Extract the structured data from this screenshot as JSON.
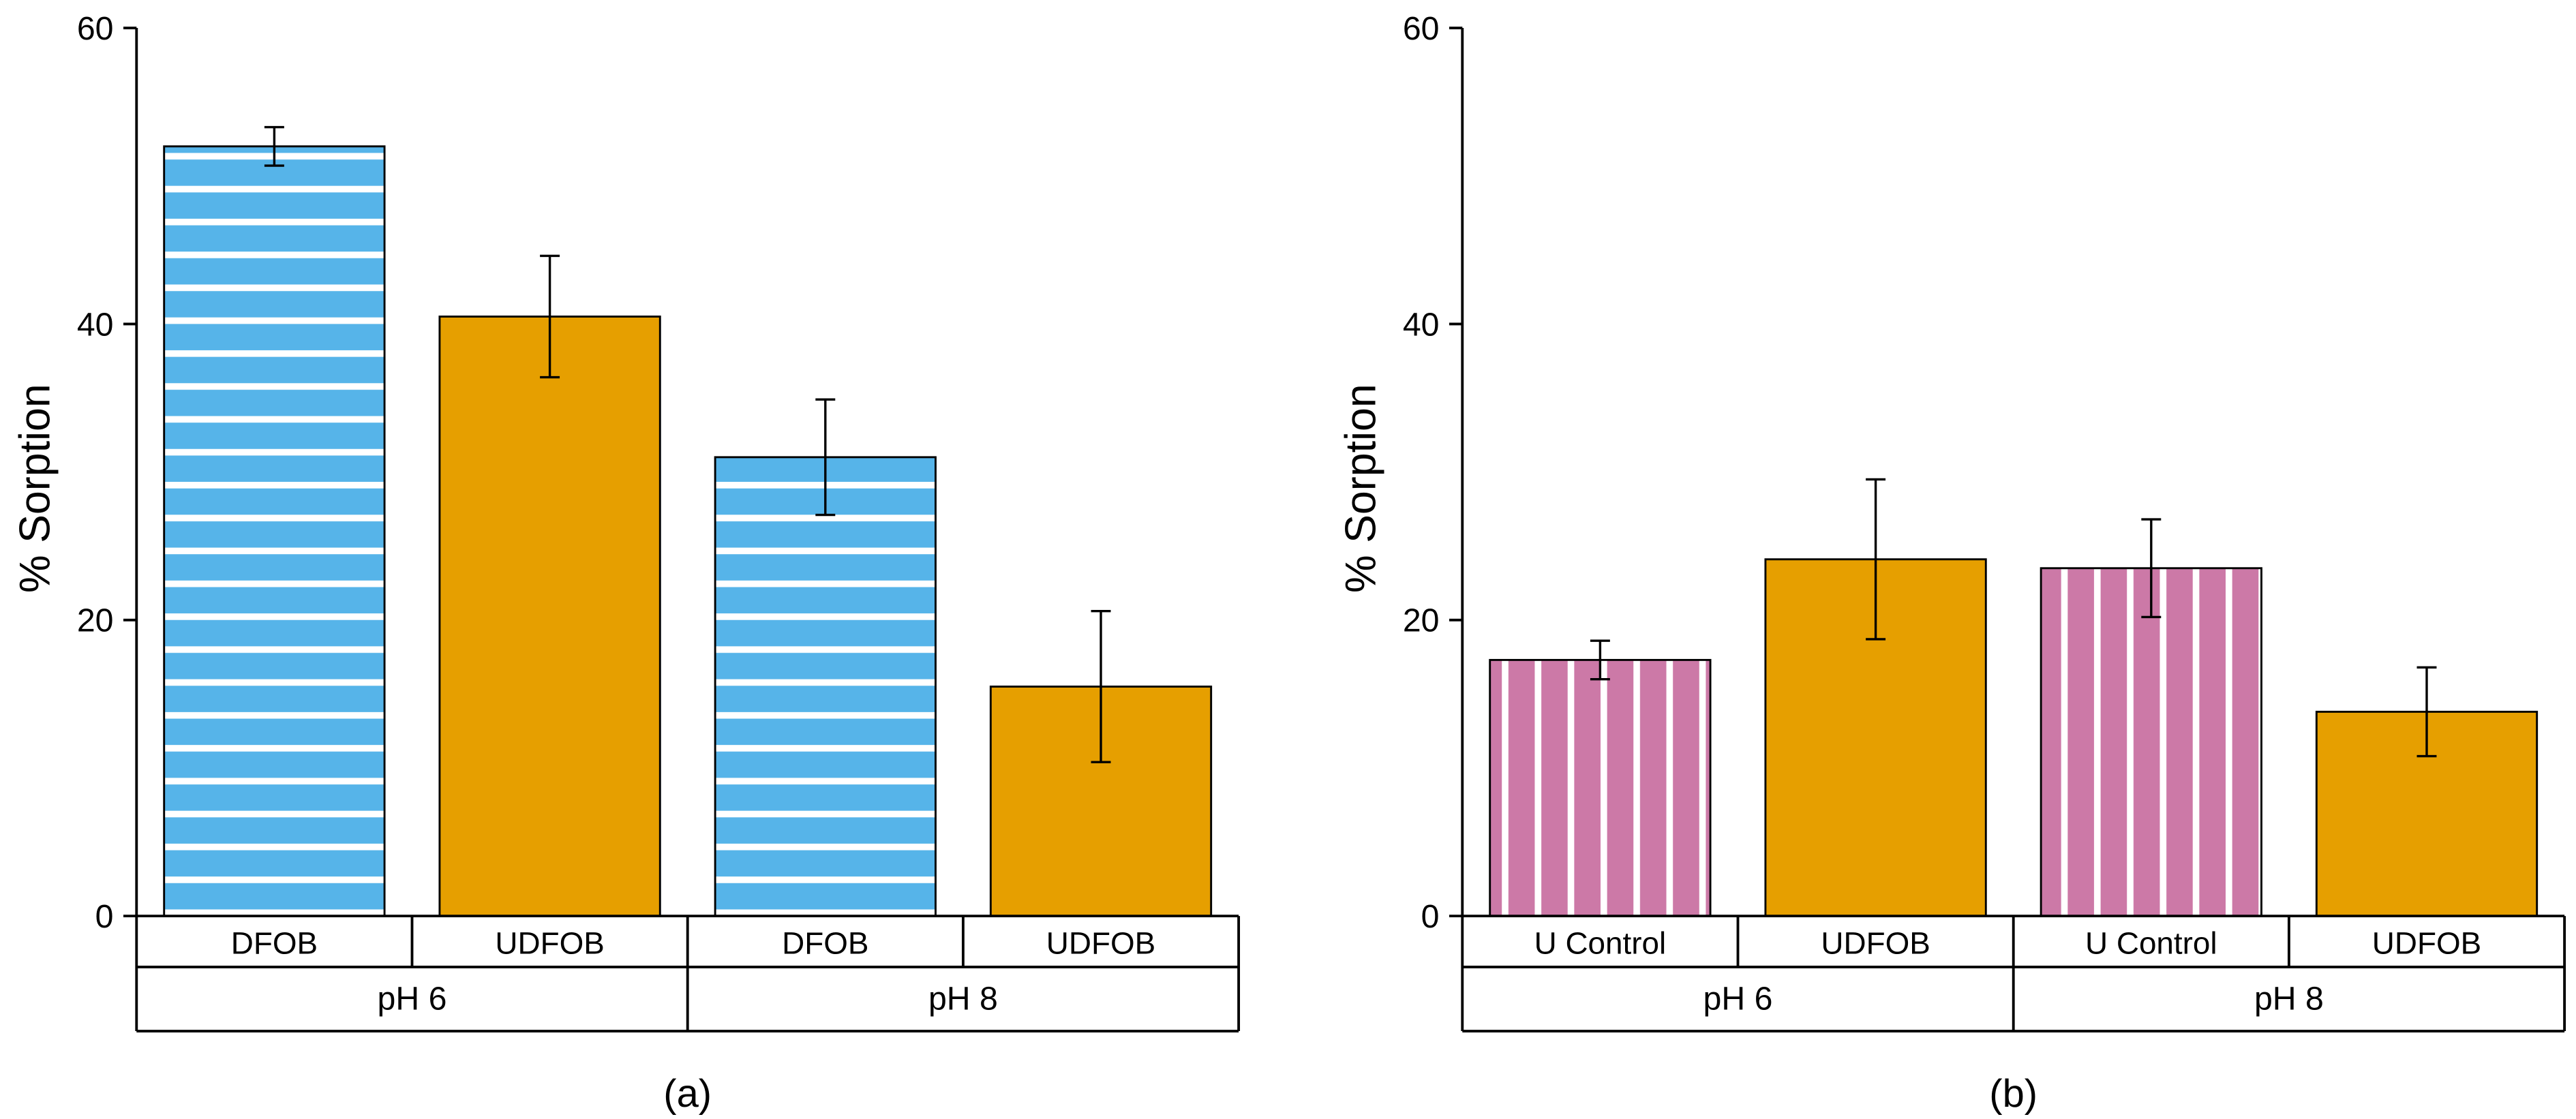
{
  "chart_data": [
    {
      "panel_label": "(a)",
      "type": "bar",
      "ylabel": "% Sorption",
      "xlabel": "",
      "ylim": [
        0,
        60
      ],
      "yticks": [
        0,
        20,
        40,
        60
      ],
      "group_labels": [
        "pH 6",
        "pH 8"
      ],
      "categories": [
        "DFOB",
        "UDFOB",
        "DFOB",
        "UDFOB"
      ],
      "values": [
        52,
        40.5,
        31,
        15.5
      ],
      "errors": [
        1.3,
        4.1,
        3.9,
        5.1
      ],
      "patterns": [
        "horizontal-stripes",
        "solid",
        "horizontal-stripes",
        "solid"
      ],
      "colors": [
        "#56b4e9",
        "#e69f00",
        "#56b4e9",
        "#e69f00"
      ]
    },
    {
      "panel_label": "(b)",
      "type": "bar",
      "ylabel": "% Sorption",
      "xlabel": "",
      "ylim": [
        0,
        60
      ],
      "yticks": [
        0,
        20,
        40,
        60
      ],
      "group_labels": [
        "pH 6",
        "pH 8"
      ],
      "categories": [
        "U Control",
        "UDFOB",
        "U Control",
        "UDFOB"
      ],
      "values": [
        17.3,
        24.1,
        23.5,
        13.8
      ],
      "errors": [
        1.3,
        5.4,
        3.3,
        3.0
      ],
      "patterns": [
        "vertical-stripes",
        "solid",
        "vertical-stripes",
        "solid"
      ],
      "colors": [
        "#cc79a7",
        "#e69f00",
        "#cc79a7",
        "#e69f00"
      ]
    }
  ]
}
